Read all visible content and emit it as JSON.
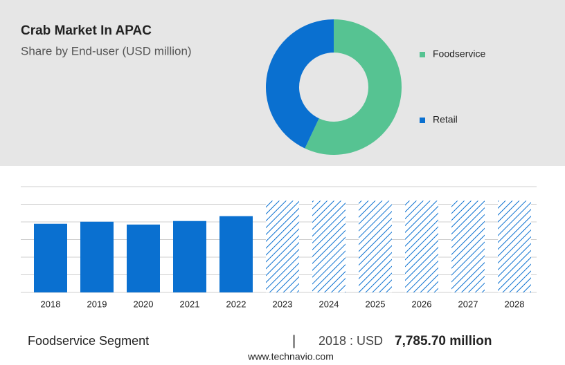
{
  "chart_data": [
    {
      "type": "donut",
      "title": "Crab Market In APAC",
      "subtitle": "Share by End-user (USD million)",
      "categories": [
        "Foodservice",
        "Retail"
      ],
      "values": [
        57,
        43
      ],
      "colors": [
        "#56c392",
        "#0a70d0"
      ],
      "legend": "right"
    },
    {
      "type": "bar",
      "categories": [
        "2018",
        "2019",
        "2020",
        "2021",
        "2022",
        "2023",
        "2024",
        "2025",
        "2026",
        "2027",
        "2028"
      ],
      "values": [
        7785.7,
        8020,
        7700,
        8100,
        8650,
        10400,
        10400,
        10400,
        10400,
        10400,
        10400
      ],
      "forecast_from": "2023",
      "color": "#0a70d0",
      "ylim": [
        0,
        12000
      ],
      "gridlines": [
        0,
        2000,
        4000,
        6000,
        8000,
        10000,
        12000
      ],
      "grid": true
    }
  ],
  "footer": {
    "segment": "Foodservice Segment",
    "separator": "|",
    "year": "2018 : USD",
    "value": "7,785.70 million",
    "source": "www.technavio.com"
  }
}
